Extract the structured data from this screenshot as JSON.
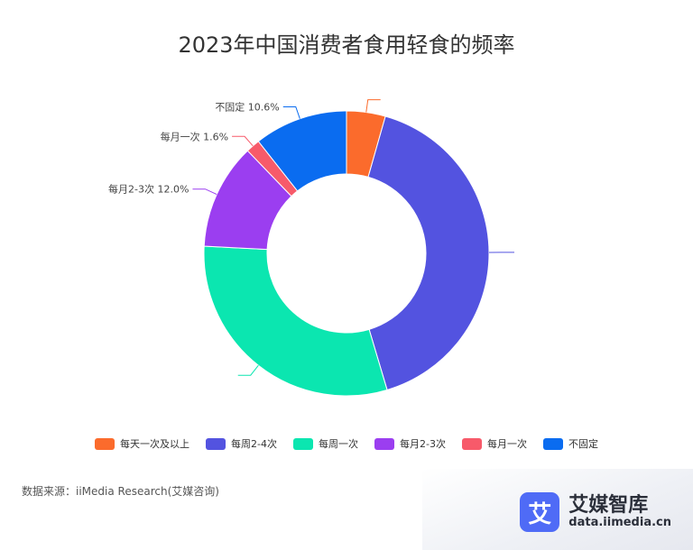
{
  "chart_data": {
    "type": "pie",
    "title": "2023年中国消费者食用轻食的频率",
    "categories": [
      "每天一次及以上",
      "每周2-4次",
      "每周一次",
      "每月2-3次",
      "每月一次",
      "不固定"
    ],
    "values": [
      4.4,
      41.0,
      30.4,
      12.0,
      1.6,
      10.6
    ],
    "unit": "%",
    "visible_labels": [
      {
        "category": "每月2-3次",
        "text": "每月2-3次 12.0%"
      },
      {
        "category": "每月一次",
        "text": "每月一次 1.6%"
      },
      {
        "category": "不固定",
        "text": "不固定 10.6%"
      }
    ],
    "colors": [
      "#fb6b2c",
      "#5353e0",
      "#0be6b0",
      "#9b3ef0",
      "#f75a6a",
      "#0a6cf0"
    ],
    "legend_position": "bottom",
    "donut": true
  },
  "footer": {
    "source": "数据来源：iiMedia Research(艾媒咨询)"
  },
  "brand": {
    "logo_char": "艾",
    "name": "艾媒智库",
    "url": "data.iimedia.cn"
  }
}
